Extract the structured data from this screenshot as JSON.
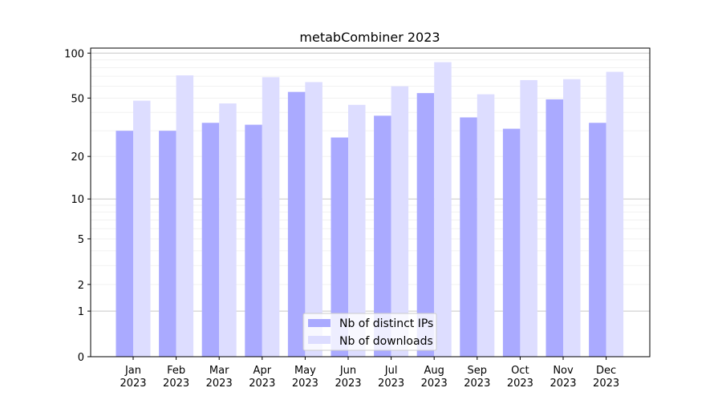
{
  "chart_data": {
    "type": "bar",
    "title": "metabCombiner 2023",
    "xlabel": "",
    "ylabel": "",
    "yscale": "symlog (log10(1+y))",
    "ylim": [
      0,
      108
    ],
    "yticks": [
      0,
      1,
      2,
      5,
      10,
      20,
      50,
      100
    ],
    "grid": true,
    "legend_position": "bottom-center",
    "categories": [
      "Jan\n2023",
      "Feb\n2023",
      "Mar\n2023",
      "Apr\n2023",
      "May\n2023",
      "Jun\n2023",
      "Jul\n2023",
      "Aug\n2023",
      "Sep\n2023",
      "Oct\n2023",
      "Nov\n2023",
      "Dec\n2023"
    ],
    "series": [
      {
        "name": "Nb of distinct IPs",
        "color": "#aaaaff",
        "values": [
          30,
          30,
          34,
          33,
          55,
          27,
          38,
          54,
          37,
          31,
          49,
          34
        ]
      },
      {
        "name": "Nb of downloads",
        "color": "#ddddff",
        "values": [
          48,
          71,
          46,
          69,
          64,
          45,
          60,
          87,
          53,
          66,
          67,
          75
        ]
      }
    ]
  }
}
